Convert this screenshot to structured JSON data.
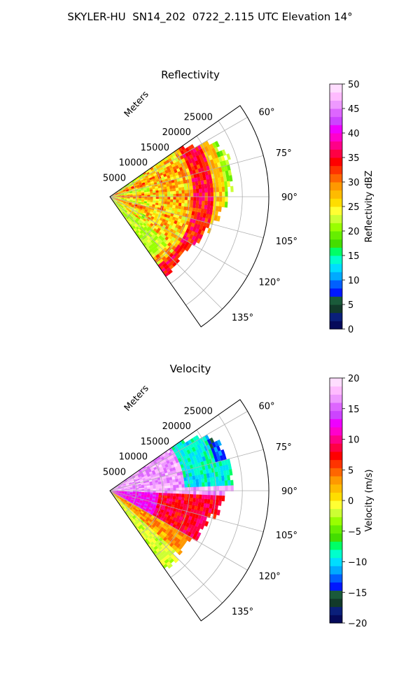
{
  "figure": {
    "suptitle": "SKYLER-HU  SN14_202  0722_2.115 UTC Elevation 14°"
  },
  "chart_data": [
    {
      "type": "heatmap",
      "projection": "polar-sector",
      "title": "Reflectivity",
      "radial_label": "Meters",
      "radial_ticks": [
        5000,
        10000,
        15000,
        20000,
        25000
      ],
      "radial_max": 30000,
      "angle_ticks": [
        "60°",
        "75°",
        "90°",
        "105°",
        "120°",
        "135°"
      ],
      "angle_values": [
        60,
        75,
        90,
        105,
        120,
        135
      ],
      "theta_range": [
        55,
        145
      ],
      "data_range_m": [
        0,
        25000
      ],
      "grid": true,
      "colorbar": {
        "label": "Reflectivity dBZ",
        "min": 0,
        "max": 50,
        "ticks": [
          "0",
          "5",
          "10",
          "15",
          "20",
          "25",
          "30",
          "35",
          "40",
          "45",
          "50"
        ],
        "colors": [
          "#050a5a",
          "#0a1f7a",
          "#123a2a",
          "#1a5a3a",
          "#0018ff",
          "#0060ff",
          "#00aaff",
          "#00ddff",
          "#00ffcc",
          "#00ff66",
          "#44dd00",
          "#66ee00",
          "#99ff00",
          "#ccff33",
          "#ffff33",
          "#ffdd00",
          "#ffbb00",
          "#ff9900",
          "#ff6600",
          "#ff3300",
          "#ff0000",
          "#ff0044",
          "#ff0088",
          "#ff00cc",
          "#ee00ff",
          "#cc44ff",
          "#dd66ff",
          "#ee99ff",
          "#ffbbff",
          "#ffddff"
        ]
      }
    },
    {
      "type": "heatmap",
      "projection": "polar-sector",
      "title": "Velocity",
      "radial_label": "Meters",
      "radial_ticks": [
        5000,
        10000,
        15000,
        20000,
        25000
      ],
      "radial_max": 30000,
      "angle_ticks": [
        "60°",
        "75°",
        "90°",
        "105°",
        "120°",
        "135°"
      ],
      "angle_values": [
        60,
        75,
        90,
        105,
        120,
        135
      ],
      "theta_range": [
        55,
        145
      ],
      "data_range_m": [
        0,
        25000
      ],
      "grid": true,
      "colorbar": {
        "label": "Velocity (m/s)",
        "min": -20,
        "max": 20,
        "ticks": [
          "−20",
          "−15",
          "−10",
          "−5",
          "0",
          "5",
          "10",
          "15",
          "20"
        ],
        "colors": [
          "#050a5a",
          "#0a1f7a",
          "#123a2a",
          "#1a5a3a",
          "#0018ff",
          "#0060ff",
          "#00aaff",
          "#00ddff",
          "#00ffcc",
          "#00ff66",
          "#44dd00",
          "#66ee00",
          "#99ff00",
          "#ccff33",
          "#ffff33",
          "#ffdd00",
          "#ffbb00",
          "#ff9900",
          "#ff6600",
          "#ff3300",
          "#ff0000",
          "#ff0044",
          "#ff0088",
          "#ff00cc",
          "#ee00ff",
          "#cc44ff",
          "#dd66ff",
          "#ee99ff",
          "#ffbbff",
          "#ffddff"
        ]
      }
    }
  ]
}
